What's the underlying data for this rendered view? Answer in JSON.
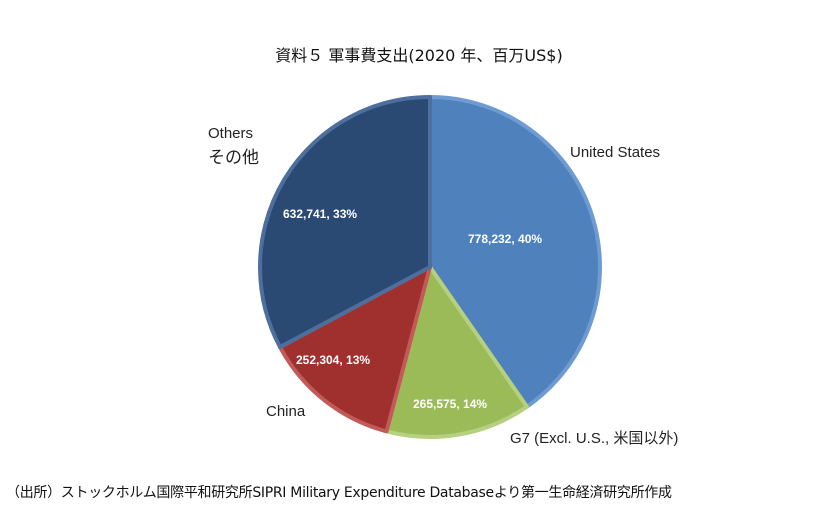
{
  "chart_data": {
    "type": "pie",
    "title": "資料５ 軍事費支出(2020 年、百万US$)",
    "start_angle": "12 o'clock",
    "direction": "clockwise",
    "slices": [
      {
        "name": "United States",
        "value": 778232,
        "data_label": "778,232, 40%",
        "color": "#4f81bd"
      },
      {
        "name": "G7 (Excl. U.S., 米国以外)",
        "value": 265575,
        "data_label": "265,575, 14%",
        "color": "#9bbb59"
      },
      {
        "name": "China",
        "value": 252304,
        "data_label": "252,304, 13%",
        "color": "#a0302e"
      },
      {
        "name": "Others",
        "name2": "その他",
        "value": 632741,
        "data_label": "632,741, 33%",
        "color": "#2b4a73"
      }
    ]
  },
  "source": "（出所）ストックホルム国際平和研究所SIPRI Military Expenditure Databaseより第一生命経済研究所作成"
}
